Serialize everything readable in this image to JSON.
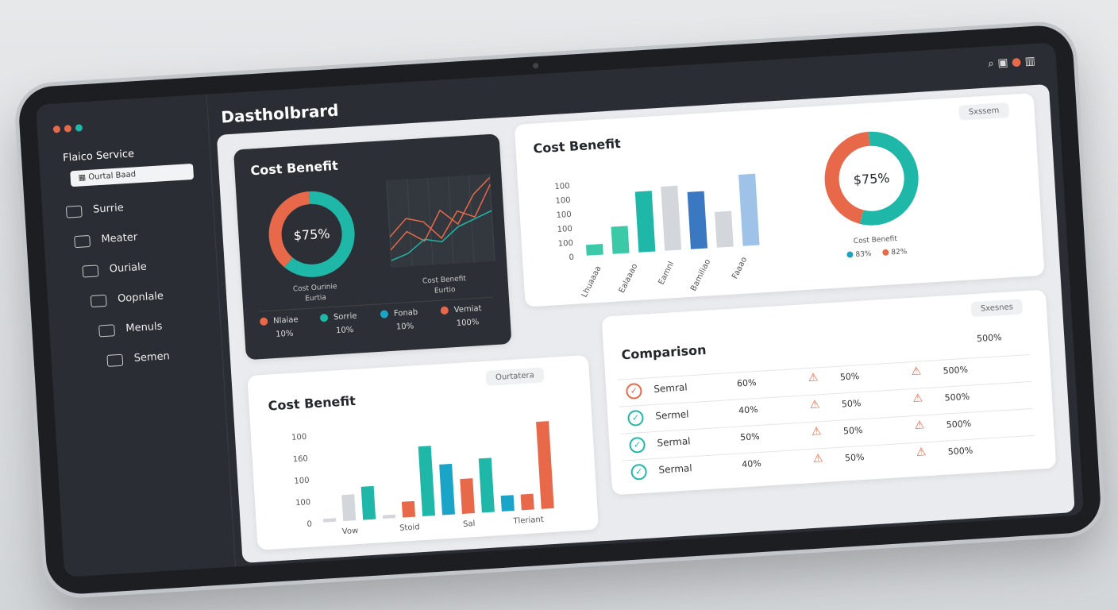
{
  "header": {
    "title": "Dastholbrard"
  },
  "sidebar": {
    "brand": "Flaico Service",
    "search": "Ourtal Baad",
    "items": [
      "Surrie",
      "Meater",
      "Ouriale",
      "Oopnlale",
      "Menuls",
      "Semen"
    ]
  },
  "dark_card": {
    "title": "Cost Benefit",
    "donut": {
      "label": "$75%",
      "caption": [
        "Cost Ourinie",
        "Eurtia"
      ],
      "segments": [
        {
          "value": 62,
          "color": "#1fb8a8"
        },
        {
          "value": 38,
          "color": "#e8694a"
        }
      ]
    },
    "line_chart": {
      "caption": [
        "Cost Benefit",
        "Eurtio"
      ],
      "ylim": [
        0,
        100
      ],
      "series": [
        {
          "color": "#e8694a",
          "values": [
            20,
            40,
            28,
            62,
            45,
            78,
            96
          ]
        },
        {
          "color": "#e8694a",
          "values": [
            35,
            55,
            50,
            30,
            60,
            52,
            88
          ]
        },
        {
          "color": "#1fb8a8",
          "values": [
            8,
            15,
            30,
            26,
            42,
            50,
            58
          ]
        }
      ]
    },
    "legend": [
      {
        "name": "Nlaiae",
        "value": "10%",
        "color": "#e8694a"
      },
      {
        "name": "Sorrie",
        "value": "10%",
        "color": "#1fb8a8"
      },
      {
        "name": "Fonab",
        "value": "10%",
        "color": "#1aa5c8"
      },
      {
        "name": "Vemiat",
        "value": "100%",
        "color": "#e8694a"
      }
    ]
  },
  "bar_card_top": {
    "title": "Cost Benefit",
    "button": "Sxssem",
    "tick_labels": [
      "100",
      "100",
      "100",
      "100",
      "100",
      "0"
    ],
    "ylim": [
      0,
      100
    ],
    "bars": [
      {
        "value": 15,
        "color": "#3cc9a7"
      },
      {
        "value": 38,
        "color": "#3cc9a7"
      },
      {
        "value": 85,
        "color": "#1fb8a8"
      },
      {
        "value": 90,
        "color": "#d3d7dc"
      },
      {
        "value": 80,
        "color": "#3b78c2"
      },
      {
        "value": 50,
        "color": "#d3d7dc"
      },
      {
        "value": 100,
        "color": "#9fc3e8"
      }
    ],
    "x_labels": [
      "Lhuaaaa",
      "Ealaaao",
      "Eamnl",
      "Bamiliao",
      "Faaao"
    ],
    "donut": {
      "label": "$75%",
      "caption": "Cost Benefit",
      "segments": [
        {
          "value": 55,
          "color": "#1fb8a8"
        },
        {
          "value": 45,
          "color": "#e8694a"
        }
      ],
      "legend": [
        {
          "value": "83%",
          "color": "#1aa5c8"
        },
        {
          "value": "82%",
          "color": "#e8694a"
        }
      ]
    }
  },
  "bar_card_bottom": {
    "title": "Cost Benefit",
    "button": "Ourtatera",
    "tick_labels": [
      "100",
      "160",
      "100",
      "100",
      "0"
    ],
    "ylim": [
      0,
      100
    ],
    "bars": [
      {
        "value": 4,
        "color": "#d3d7dc"
      },
      {
        "value": 30,
        "color": "#d3d7dc"
      },
      {
        "value": 38,
        "color": "#1fb8a8"
      },
      {
        "value": 4,
        "color": "#d3d7dc"
      },
      {
        "value": 18,
        "color": "#e8694a"
      },
      {
        "value": 80,
        "color": "#1fb8a8"
      },
      {
        "value": 58,
        "color": "#1aa5c8"
      },
      {
        "value": 40,
        "color": "#e8694a"
      },
      {
        "value": 62,
        "color": "#1fb8a8"
      },
      {
        "value": 18,
        "color": "#1aa5c8"
      },
      {
        "value": 18,
        "color": "#e8694a"
      },
      {
        "value": 100,
        "color": "#e8694a"
      }
    ],
    "x_labels": [
      "Vow",
      "Stoid",
      "Sal",
      "Tleriant"
    ]
  },
  "comparison": {
    "title": "Comparison",
    "button": "Sxesnes",
    "header": "500%",
    "rows": [
      {
        "label": "Semral",
        "icon_color": "#e8694a",
        "cells": [
          "60%",
          "50%",
          "500%"
        ]
      },
      {
        "label": "Sermel",
        "icon_color": "#1fb8a8",
        "cells": [
          "40%",
          "50%",
          "500%"
        ]
      },
      {
        "label": "Sermal",
        "icon_color": "#1fb8a8",
        "cells": [
          "50%",
          "50%",
          "500%"
        ]
      },
      {
        "label": "Sermal",
        "icon_color": "#1fb8a8",
        "cells": [
          "40%",
          "50%",
          "500%"
        ]
      }
    ]
  }
}
